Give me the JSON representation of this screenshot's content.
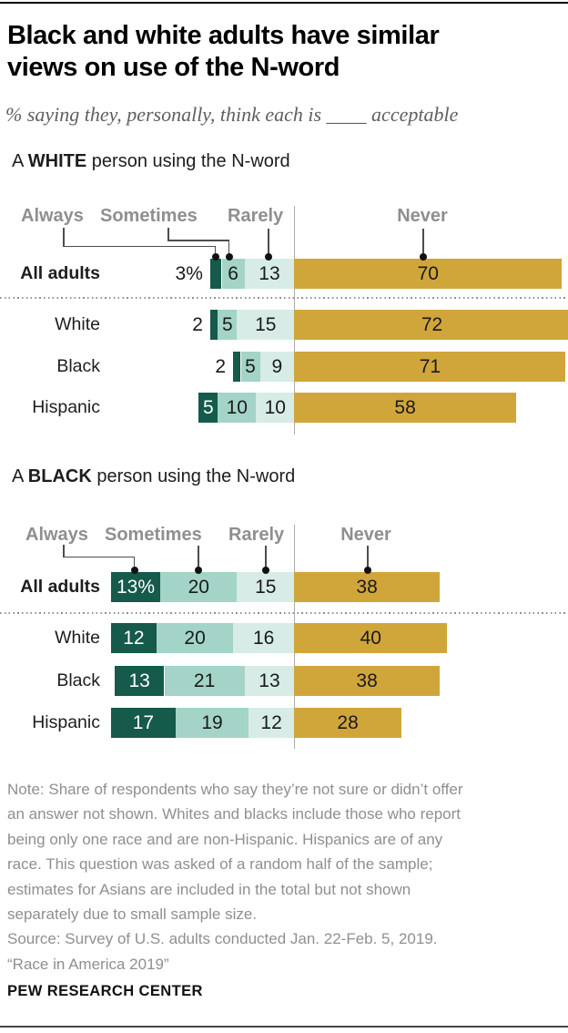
{
  "header": {
    "title_line1": "Black and white adults have similar",
    "title_line2": "views on use of the N-word",
    "subtitle": "% saying they, personally, think each is ____ acceptable"
  },
  "colors": {
    "always": "#155A4B",
    "sometimes": "#A3D4C7",
    "rarely": "#D7ECE6",
    "never": "#D0A63B"
  },
  "charts": [
    {
      "section_prefix": "A ",
      "section_emphasis": "WHITE",
      "section_suffix": " person using the N-word",
      "legend": [
        "Always",
        "Sometimes",
        "Rarely",
        "Never"
      ],
      "rows": [
        {
          "label": "All adults",
          "bold": true,
          "values": [
            3,
            6,
            13,
            70
          ],
          "value_labels": [
            "3%",
            "6",
            "13",
            "70"
          ],
          "first_label_outside": true
        },
        {
          "label": "White",
          "bold": false,
          "values": [
            2,
            5,
            15,
            72
          ],
          "value_labels": [
            "2",
            "5",
            "15",
            "72"
          ],
          "first_label_outside": true
        },
        {
          "label": "Black",
          "bold": false,
          "values": [
            2,
            5,
            9,
            71
          ],
          "value_labels": [
            "2",
            "5",
            "9",
            "71"
          ],
          "first_label_outside": true
        },
        {
          "label": "Hispanic",
          "bold": false,
          "values": [
            5,
            10,
            10,
            58
          ],
          "value_labels": [
            "5",
            "10",
            "10",
            "58"
          ],
          "first_label_outside": false
        }
      ]
    },
    {
      "section_prefix": "A ",
      "section_emphasis": "BLACK",
      "section_suffix": " person using the N-word",
      "legend": [
        "Always",
        "Sometimes",
        "Rarely",
        "Never"
      ],
      "rows": [
        {
          "label": "All adults",
          "bold": true,
          "values": [
            13,
            20,
            15,
            38
          ],
          "value_labels": [
            "13%",
            "20",
            "15",
            "38"
          ],
          "first_label_outside": false
        },
        {
          "label": "White",
          "bold": false,
          "values": [
            12,
            20,
            16,
            40
          ],
          "value_labels": [
            "12",
            "20",
            "16",
            "40"
          ],
          "first_label_outside": false
        },
        {
          "label": "Black",
          "bold": false,
          "values": [
            13,
            21,
            13,
            38
          ],
          "value_labels": [
            "13",
            "21",
            "13",
            "38"
          ],
          "first_label_outside": false
        },
        {
          "label": "Hispanic",
          "bold": false,
          "values": [
            17,
            19,
            12,
            28
          ],
          "value_labels": [
            "17",
            "19",
            "12",
            "28"
          ],
          "first_label_outside": false
        }
      ]
    }
  ],
  "note_lines": [
    "Note: Share of respondents who say they’re not sure or didn’t offer",
    "an answer not shown. Whites and blacks include those who report",
    "being only one race and are non-Hispanic. Hispanics are of any",
    "race. This question was asked of a random half of the sample;",
    "estimates for Asians are included in the total but not shown",
    "separately due to small sample size."
  ],
  "source_lines": [
    "Source: Survey of U.S. adults conducted Jan. 22-Feb. 5, 2019.",
    "“Race in America 2019”"
  ],
  "footer": "PEW RESEARCH CENTER",
  "chart_data": [
    {
      "type": "bar",
      "orientation": "horizontal-stacked",
      "title": "A WHITE person using the N-word",
      "xlabel": "",
      "ylabel": "",
      "xlim": [
        0,
        100
      ],
      "grid": false,
      "legend_position": "top",
      "categories": [
        "All adults",
        "White",
        "Black",
        "Hispanic"
      ],
      "series": [
        {
          "name": "Always",
          "values": [
            3,
            2,
            2,
            5
          ]
        },
        {
          "name": "Sometimes",
          "values": [
            6,
            5,
            5,
            10
          ]
        },
        {
          "name": "Rarely",
          "values": [
            13,
            15,
            9,
            10
          ]
        },
        {
          "name": "Never",
          "values": [
            70,
            72,
            71,
            58
          ]
        }
      ]
    },
    {
      "type": "bar",
      "orientation": "horizontal-stacked",
      "title": "A BLACK person using the N-word",
      "xlabel": "",
      "ylabel": "",
      "xlim": [
        0,
        100
      ],
      "grid": false,
      "legend_position": "top",
      "categories": [
        "All adults",
        "White",
        "Black",
        "Hispanic"
      ],
      "series": [
        {
          "name": "Always",
          "values": [
            13,
            12,
            13,
            17
          ]
        },
        {
          "name": "Sometimes",
          "values": [
            20,
            20,
            21,
            19
          ]
        },
        {
          "name": "Rarely",
          "values": [
            15,
            16,
            13,
            12
          ]
        },
        {
          "name": "Never",
          "values": [
            38,
            40,
            38,
            28
          ]
        }
      ]
    }
  ]
}
